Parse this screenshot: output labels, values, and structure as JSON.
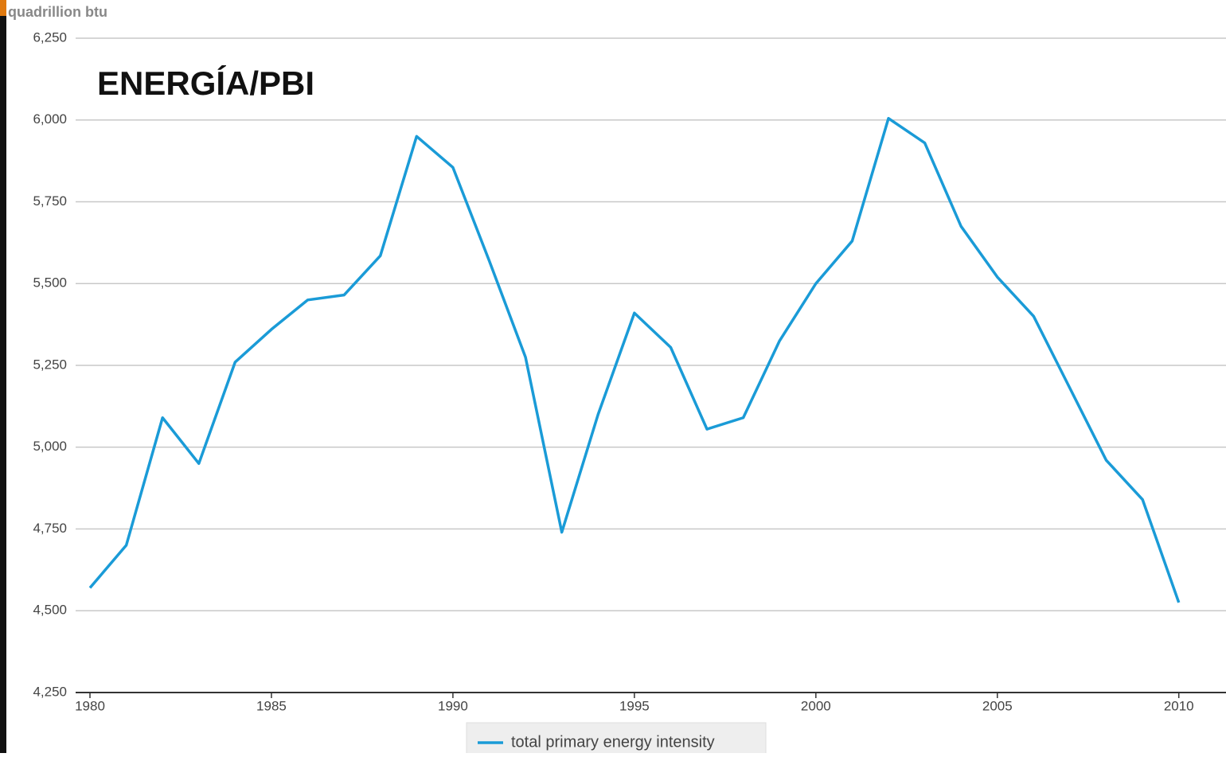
{
  "chart_data": {
    "type": "line",
    "title": "ENERGÍA/PBI",
    "y_axis_label": "quadrillion btu",
    "x": [
      1980,
      1981,
      1982,
      1983,
      1984,
      1985,
      1986,
      1987,
      1988,
      1989,
      1990,
      1991,
      1992,
      1993,
      1994,
      1995,
      1996,
      1997,
      1998,
      1999,
      2000,
      2001,
      2002,
      2003,
      2004,
      2005,
      2006,
      2007,
      2008,
      2009,
      2010
    ],
    "series": [
      {
        "name": "total primary energy intensity",
        "color": "#1a9bd7",
        "values": [
          4570,
          4700,
          5090,
          4950,
          5260,
          5360,
          5450,
          5465,
          5585,
          5950,
          5855,
          5570,
          5275,
          4740,
          5100,
          5410,
          5305,
          5055,
          5090,
          5325,
          5500,
          5630,
          6005,
          5930,
          5675,
          5520,
          5400,
          5180,
          4960,
          4840,
          4525
        ]
      }
    ],
    "xlim": [
      1980,
      2011.3
    ],
    "xticks": [
      1980,
      1985,
      1990,
      1995,
      2000,
      2005,
      2010
    ],
    "ylim": [
      4250,
      6250
    ],
    "yticks": [
      {
        "value": 4250,
        "label": "4,250"
      },
      {
        "value": 4500,
        "label": "4,500"
      },
      {
        "value": 4750,
        "label": "4,750"
      },
      {
        "value": 5000,
        "label": "5,000"
      },
      {
        "value": 5250,
        "label": "5,250"
      },
      {
        "value": 5500,
        "label": "5,500"
      },
      {
        "value": 5750,
        "label": "5,750"
      },
      {
        "value": 6000,
        "label": "6,000"
      },
      {
        "value": 6250,
        "label": "6,250"
      }
    ],
    "grid": true,
    "legend": "bottom"
  }
}
